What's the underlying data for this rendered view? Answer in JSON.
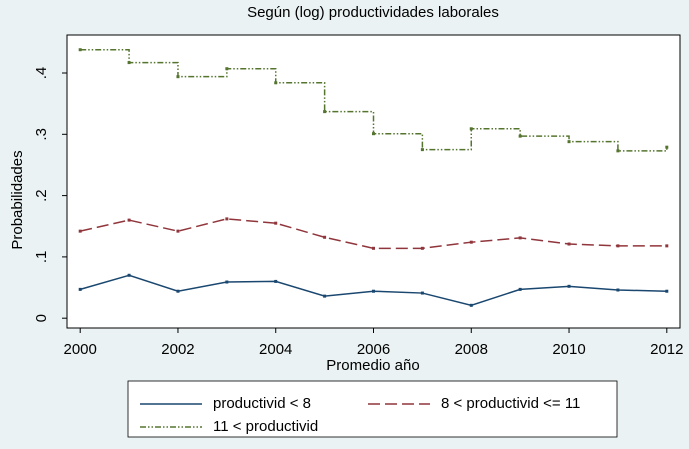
{
  "chart_data": {
    "type": "line",
    "title": "Según (log) productividades laborales",
    "xlabel": "Promedio año",
    "ylabel": "Probabilidades",
    "x": [
      2000,
      2001,
      2002,
      2003,
      2004,
      2005,
      2006,
      2007,
      2008,
      2009,
      2010,
      2011,
      2012
    ],
    "series": [
      {
        "name": "productivid < 8",
        "color": "#1a476f",
        "style": "solid",
        "connect": "direct",
        "values": [
          0.047,
          0.07,
          0.044,
          0.059,
          0.06,
          0.036,
          0.044,
          0.041,
          0.021,
          0.047,
          0.052,
          0.046,
          0.044
        ]
      },
      {
        "name": "8 < productivid <= 11",
        "color": "#90353b",
        "style": "dash",
        "connect": "direct",
        "values": [
          0.142,
          0.16,
          0.142,
          0.162,
          0.155,
          0.132,
          0.114,
          0.114,
          0.124,
          0.131,
          0.121,
          0.118,
          0.118
        ]
      },
      {
        "name": "11 < productivid",
        "color": "#55752f",
        "style": "dashdot",
        "connect": "stairstep",
        "values": [
          0.438,
          0.417,
          0.394,
          0.407,
          0.384,
          0.337,
          0.301,
          0.275,
          0.309,
          0.297,
          0.288,
          0.273,
          0.279
        ]
      }
    ],
    "xlim": [
      1999.73,
      2012.27
    ],
    "xticks": [
      2000,
      2002,
      2004,
      2006,
      2008,
      2010,
      2012
    ],
    "ylim": [
      -0.016,
      0.462
    ],
    "yticks": [
      0,
      {
        "value": 0.1,
        "label": ".1"
      },
      {
        "value": 0.2,
        "label": ".2"
      },
      {
        "value": 0.3,
        "label": ".3"
      },
      {
        "value": 0.4,
        "label": ".4"
      }
    ],
    "grid": false,
    "legend": "bottom"
  }
}
